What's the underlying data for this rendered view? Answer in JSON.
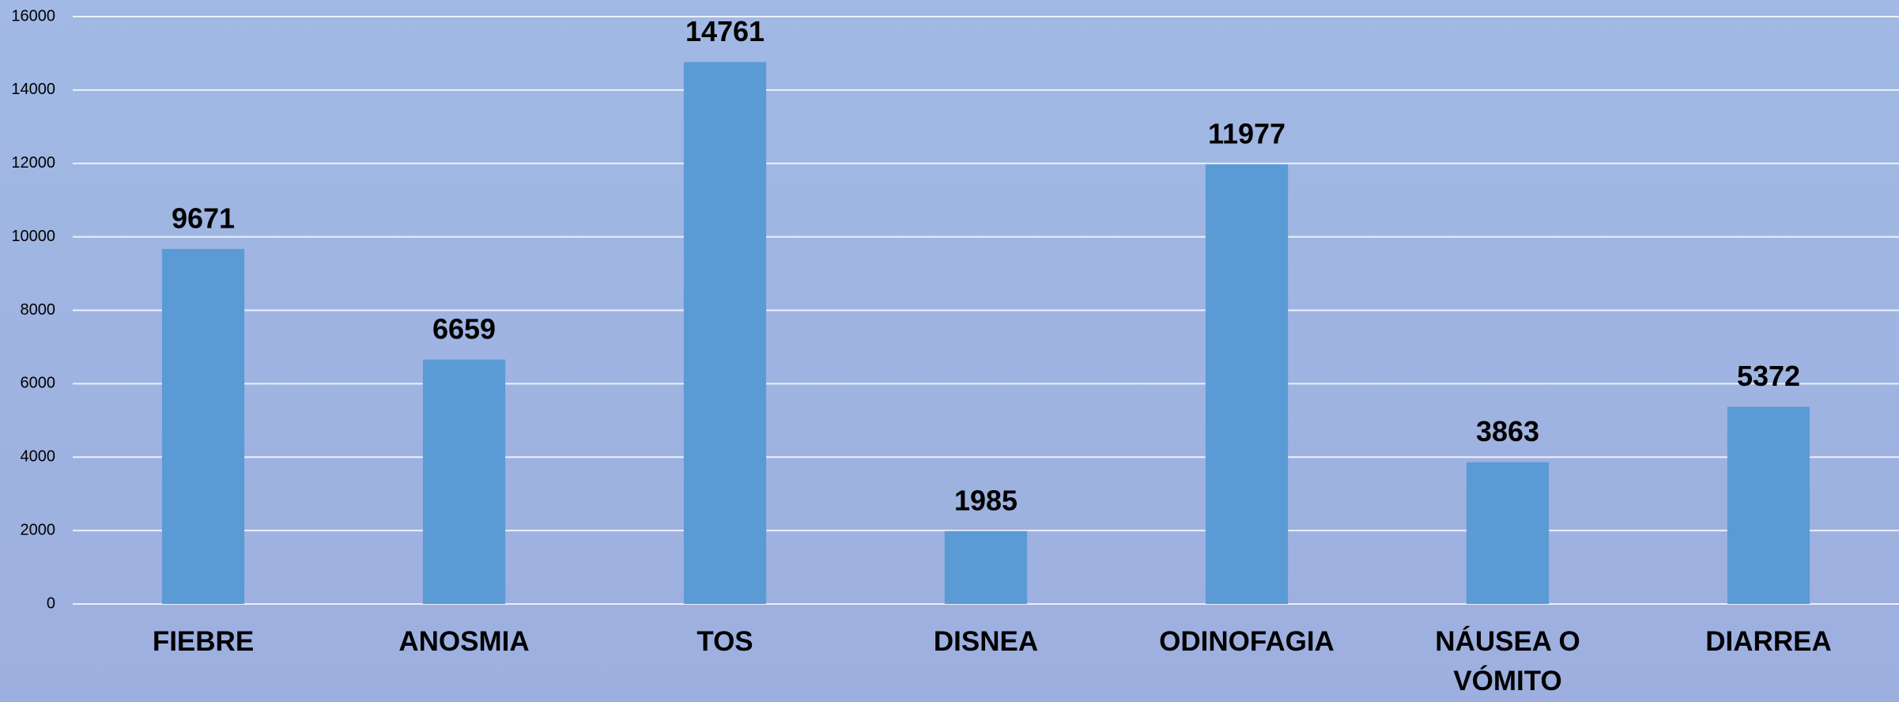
{
  "chart_data": {
    "type": "bar",
    "categories": [
      "FIEBRE",
      "ANOSMIA",
      "TOS",
      "DISNEA",
      "ODINOFAGIA",
      "NÁUSEA O VÓMITO",
      "DIARREA"
    ],
    "values": [
      9671,
      6659,
      14761,
      1985,
      11977,
      3863,
      5372
    ],
    "color": "#5b9bd5",
    "ylim": [
      0,
      16000
    ],
    "yticks": [
      0,
      2000,
      4000,
      6000,
      8000,
      10000,
      12000,
      14000,
      16000
    ],
    "grid": true
  }
}
